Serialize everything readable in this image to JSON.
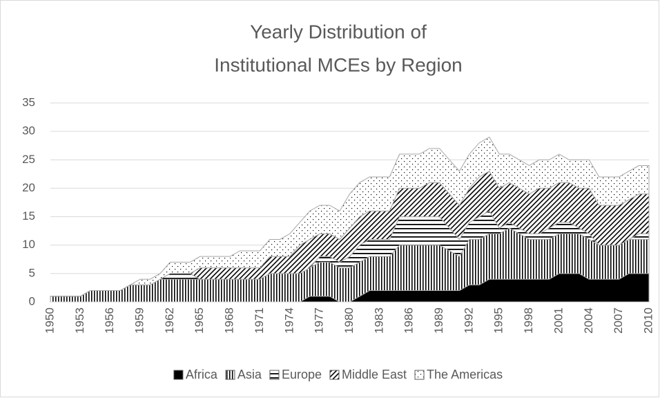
{
  "chart_data": {
    "type": "stacked_area",
    "title": [
      "Yearly Distribution of",
      "Institutional MCEs by Region"
    ],
    "categories": [
      "1950",
      null,
      null,
      "1953",
      null,
      null,
      "1956",
      null,
      null,
      "1959",
      null,
      null,
      "1962",
      null,
      null,
      "1965",
      null,
      null,
      "1968",
      null,
      null,
      "1971",
      null,
      null,
      "1974",
      null,
      null,
      "1977",
      null,
      null,
      "1980",
      null,
      null,
      "1983",
      null,
      null,
      "1986",
      null,
      null,
      "1989",
      null,
      null,
      "1992",
      null,
      null,
      "1995",
      null,
      null,
      "1998",
      null,
      null,
      "2001",
      null,
      null,
      "2004",
      null,
      null,
      "2007",
      null,
      null,
      "2010"
    ],
    "series": [
      {
        "name": "Africa",
        "color": "#000000",
        "pattern": "solid",
        "values": [
          0,
          0,
          0,
          0,
          0,
          0,
          0,
          0,
          0,
          0,
          0,
          0,
          0,
          0,
          0,
          0,
          0,
          0,
          0,
          0,
          0,
          0,
          0,
          0,
          0,
          0,
          1,
          1,
          1,
          0,
          0,
          1,
          2,
          2,
          2,
          2,
          2,
          2,
          2,
          2,
          2,
          2,
          3,
          3,
          4,
          4,
          4,
          4,
          4,
          4,
          4,
          5,
          5,
          5,
          4,
          4,
          4,
          4,
          5,
          5,
          5
        ]
      },
      {
        "name": "Asia",
        "color": "#000000",
        "pattern": "vertical",
        "values": [
          1,
          1,
          1,
          1,
          2,
          2,
          2,
          2,
          3,
          3,
          3,
          4,
          4,
          4,
          4,
          4,
          4,
          4,
          4,
          4,
          4,
          4,
          5,
          5,
          5,
          5,
          5,
          6,
          6,
          6,
          6,
          6,
          6,
          6,
          6,
          8,
          8,
          8,
          8,
          8,
          7,
          6,
          8,
          8,
          8,
          8,
          9,
          8,
          7,
          7,
          7,
          7,
          7,
          7,
          7,
          6,
          6,
          6,
          6,
          6,
          6
        ]
      },
      {
        "name": "Europe",
        "color": "#000000",
        "pattern": "horizontal",
        "values": [
          0,
          0,
          0,
          0,
          0,
          0,
          0,
          0,
          0,
          0,
          0,
          0,
          1,
          1,
          1,
          0,
          0,
          0,
          0,
          0,
          0,
          0,
          0,
          0,
          0,
          0,
          0,
          1,
          1,
          1,
          2,
          3,
          3,
          3,
          3,
          5,
          5,
          5,
          5,
          5,
          4,
          3,
          3,
          4,
          4,
          1,
          1,
          1,
          1,
          1,
          2,
          2,
          2,
          1,
          1,
          0,
          0,
          0,
          0,
          1,
          1
        ]
      },
      {
        "name": "Middle East",
        "color": "#000000",
        "pattern": "diagonal",
        "values": [
          0,
          0,
          0,
          0,
          0,
          0,
          0,
          0,
          0,
          0,
          0,
          0,
          0,
          0,
          0,
          2,
          2,
          2,
          2,
          2,
          2,
          2,
          3,
          3,
          3,
          5,
          5,
          4,
          4,
          4,
          5,
          5,
          5,
          5,
          5,
          5,
          5,
          5,
          6,
          6,
          6,
          6,
          6,
          7,
          7,
          7,
          7,
          7,
          7,
          8,
          7,
          7,
          7,
          7,
          8,
          7,
          7,
          7,
          7,
          7,
          7
        ]
      },
      {
        "name": "The Americas",
        "color": "#000000",
        "pattern": "dots",
        "values": [
          0,
          0,
          0,
          0,
          0,
          0,
          0,
          0,
          0,
          1,
          1,
          1,
          2,
          2,
          2,
          2,
          2,
          2,
          2,
          3,
          3,
          3,
          3,
          3,
          4,
          4,
          5,
          5,
          5,
          5,
          6,
          6,
          6,
          6,
          6,
          6,
          6,
          6,
          6,
          6,
          6,
          6,
          6,
          6,
          6,
          6,
          5,
          5,
          5,
          5,
          5,
          5,
          4,
          5,
          5,
          5,
          5,
          5,
          5,
          5,
          5
        ]
      }
    ],
    "ylim": [
      0,
      35
    ],
    "yticks": [
      0,
      5,
      10,
      15,
      20,
      25,
      30,
      35
    ],
    "grid": true,
    "legend": "bottom"
  }
}
